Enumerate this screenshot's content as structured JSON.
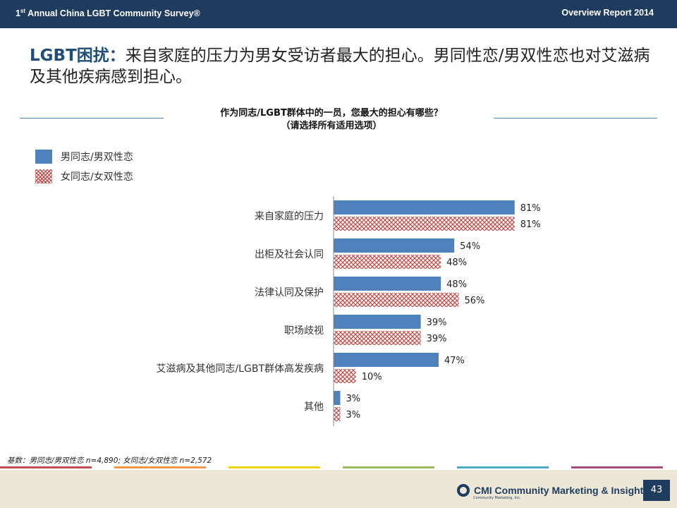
{
  "header": {
    "left_title_prefix": "1",
    "left_title_sup": "st",
    "left_title_rest": " Annual China LGBT Community Survey®",
    "right_title": "Overview Report 2014"
  },
  "slide": {
    "title_highlight": "LGBT困扰：",
    "title_rest": "来自家庭的压力为男女受访者最大的担心。男同性恋/男双性恋也对艾滋病及其他疾病感到担心。"
  },
  "chart_data": {
    "type": "bar",
    "orientation": "horizontal",
    "title": "作为同志/LGBT群体中的一员，您最大的担心有哪些？",
    "subtitle": "（请选择所有适用选项）",
    "categories": [
      "来自家庭的压力",
      "出柜及社会认同",
      "法律认同及保护",
      "职场歧视",
      "艾滋病及其他同志/LGBT群体高发疾病",
      "其他"
    ],
    "series": [
      {
        "name": "男同志/男双性恋",
        "values": [
          81,
          54,
          48,
          39,
          47,
          3
        ],
        "labels": [
          "81%",
          "54%",
          "48%",
          "39%",
          "47%",
          "3%"
        ],
        "color": "#4f81bd",
        "pattern": "solid"
      },
      {
        "name": "女同志/女双性恋",
        "values": [
          81,
          48,
          56,
          39,
          10,
          3
        ],
        "labels": [
          "81%",
          "48%",
          "56%",
          "39%",
          "10%",
          "3%"
        ],
        "color": "#c0504d",
        "pattern": "crosshatch"
      }
    ],
    "xlim": [
      0,
      100
    ],
    "unit": "%",
    "grid": false,
    "legend_position": "top-left"
  },
  "footnote": {
    "base": "基数：男同志/男双性恋 n=4,890; 女同志/女双性恋 n=2,572"
  },
  "footer": {
    "strip_colors": [
      "#c0504d",
      "#f79646",
      "#f2d200",
      "#9bbb59",
      "#4bacc6",
      "#a64d79"
    ],
    "logo_text": "CMI Community Marketing & Insights",
    "logo_sub": "Community Marketing, Inc.",
    "page_number": "43"
  }
}
